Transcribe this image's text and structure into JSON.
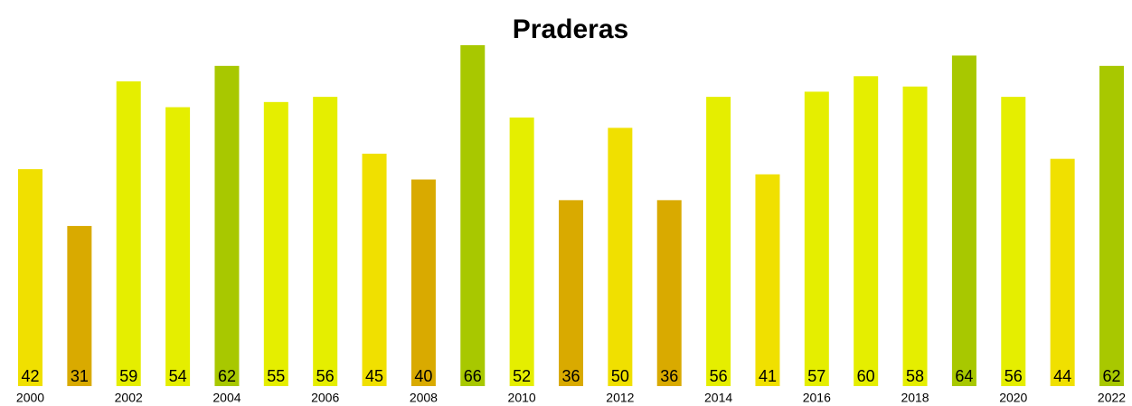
{
  "chart_data": {
    "type": "bar",
    "title": "Praderas",
    "categories": [
      "2000",
      null,
      "2002",
      null,
      "2004",
      null,
      "2006",
      null,
      "2008",
      null,
      "2010",
      null,
      "2012",
      null,
      "2014",
      null,
      "2016",
      null,
      "2018",
      null,
      "2020",
      null,
      "2022"
    ],
    "values": [
      42,
      31,
      59,
      54,
      62,
      55,
      56,
      45,
      40,
      66,
      52,
      36,
      50,
      36,
      56,
      41,
      57,
      60,
      58,
      64,
      56,
      44,
      62
    ],
    "colors": [
      "#f0e000",
      "#d9aa00",
      "#e5ee00",
      "#e5ee00",
      "#a8c800",
      "#e5ee00",
      "#e5ee00",
      "#f0e000",
      "#d9aa00",
      "#a8c800",
      "#e5ee00",
      "#d9aa00",
      "#f0e000",
      "#d9aa00",
      "#e5ee00",
      "#f0e000",
      "#e5ee00",
      "#e5ee00",
      "#e5ee00",
      "#a8c800",
      "#e5ee00",
      "#f0e000",
      "#a8c800"
    ]
  }
}
